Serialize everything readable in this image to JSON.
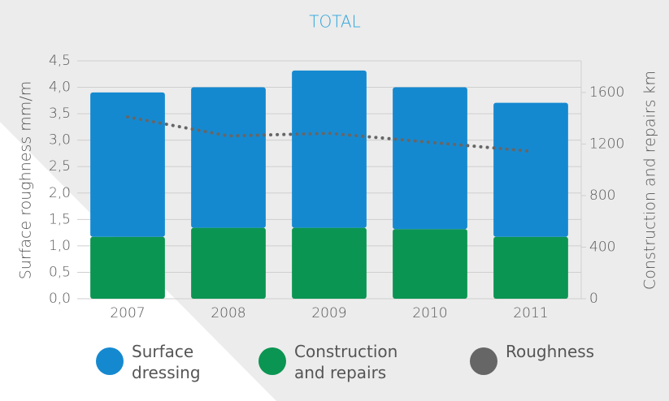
{
  "chart_data": {
    "type": "bar",
    "title": "TOTAL",
    "y_label": "Surface roughness mm/m",
    "y2_label": "Construction and repairs km",
    "categories": [
      "2007",
      "2008",
      "2009",
      "2010",
      "2011"
    ],
    "series": [
      {
        "name": "Surface dressing",
        "type": "bar",
        "axis": "y2",
        "color": "#1589d0",
        "values": [
          1120,
          1090,
          1220,
          1100,
          1040
        ]
      },
      {
        "name": "Construction and repairs",
        "type": "bar",
        "axis": "y2",
        "color": "#0b9552",
        "values": [
          480,
          550,
          550,
          540,
          480
        ]
      },
      {
        "name": "Roughness",
        "type": "line",
        "axis": "y",
        "color": "#666666",
        "values": [
          3.44,
          3.08,
          3.13,
          2.96,
          2.79
        ]
      }
    ],
    "ylim": [
      0,
      4.5
    ],
    "yticks": [
      {
        "value": 0,
        "label": "0,0"
      },
      {
        "value": 0.5,
        "label": "0,5"
      },
      {
        "value": 1,
        "label": "1,0"
      },
      {
        "value": 1.5,
        "label": "1,5"
      },
      {
        "value": 2,
        "label": "2,0"
      },
      {
        "value": 2.5,
        "label": "2,5"
      },
      {
        "value": 3,
        "label": "3,0"
      },
      {
        "value": 3.5,
        "label": "3,5"
      },
      {
        "value": 4,
        "label": "4,0"
      },
      {
        "value": 4.5,
        "label": "4,5"
      }
    ],
    "y2lim": [
      0,
      1845
    ],
    "y2ticks": [
      0,
      400,
      800,
      1200,
      1600
    ],
    "grid": true
  }
}
